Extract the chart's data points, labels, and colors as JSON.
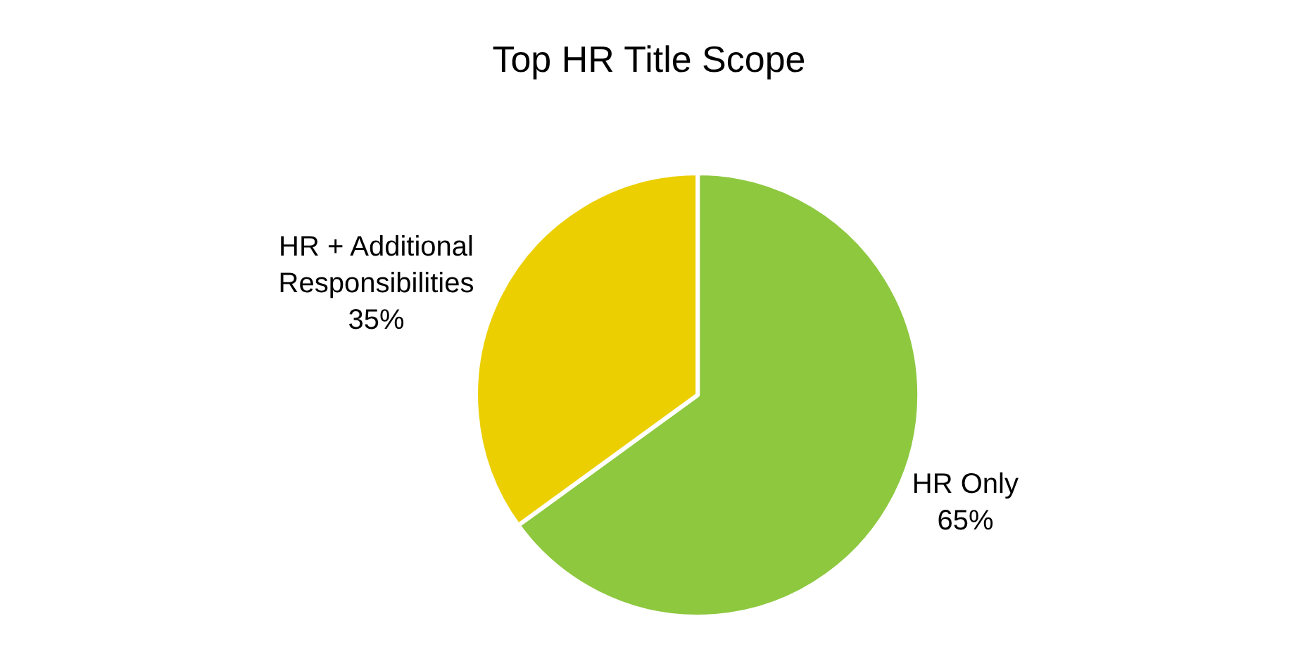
{
  "chart_data": {
    "type": "pie",
    "title": "Top HR Title Scope",
    "categories": [
      "HR Only",
      "HR + Additional Responsibilities"
    ],
    "values": [
      65,
      35
    ],
    "colors": [
      "#8dc83f",
      "#ebcf00"
    ],
    "value_labels": [
      "65%",
      "35%"
    ],
    "legend": false
  }
}
